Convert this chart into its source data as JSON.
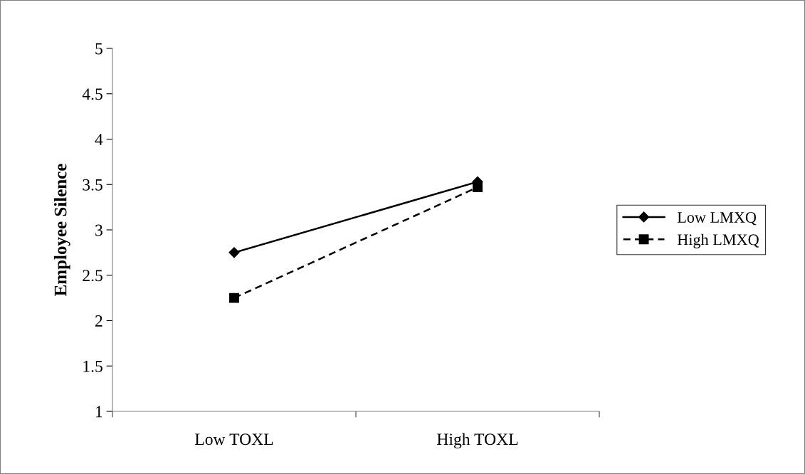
{
  "chart_data": {
    "type": "line",
    "ylabel": "Employee Silence",
    "categories": [
      "Low TOXL",
      "High TOXL"
    ],
    "series": [
      {
        "name": "Low LMXQ",
        "color": "#000000",
        "values": [
          2.75,
          3.53
        ],
        "marker": "diamond",
        "line_style": "solid"
      },
      {
        "name": "High LMXQ",
        "color": "#000000",
        "values": [
          2.25,
          3.47
        ],
        "marker": "square",
        "line_style": "dashed"
      }
    ],
    "ylim": [
      1,
      5
    ],
    "yticks": [
      1,
      1.5,
      2,
      2.5,
      3,
      3.5,
      4,
      4.5,
      5
    ],
    "grid": false,
    "legend": "right"
  }
}
